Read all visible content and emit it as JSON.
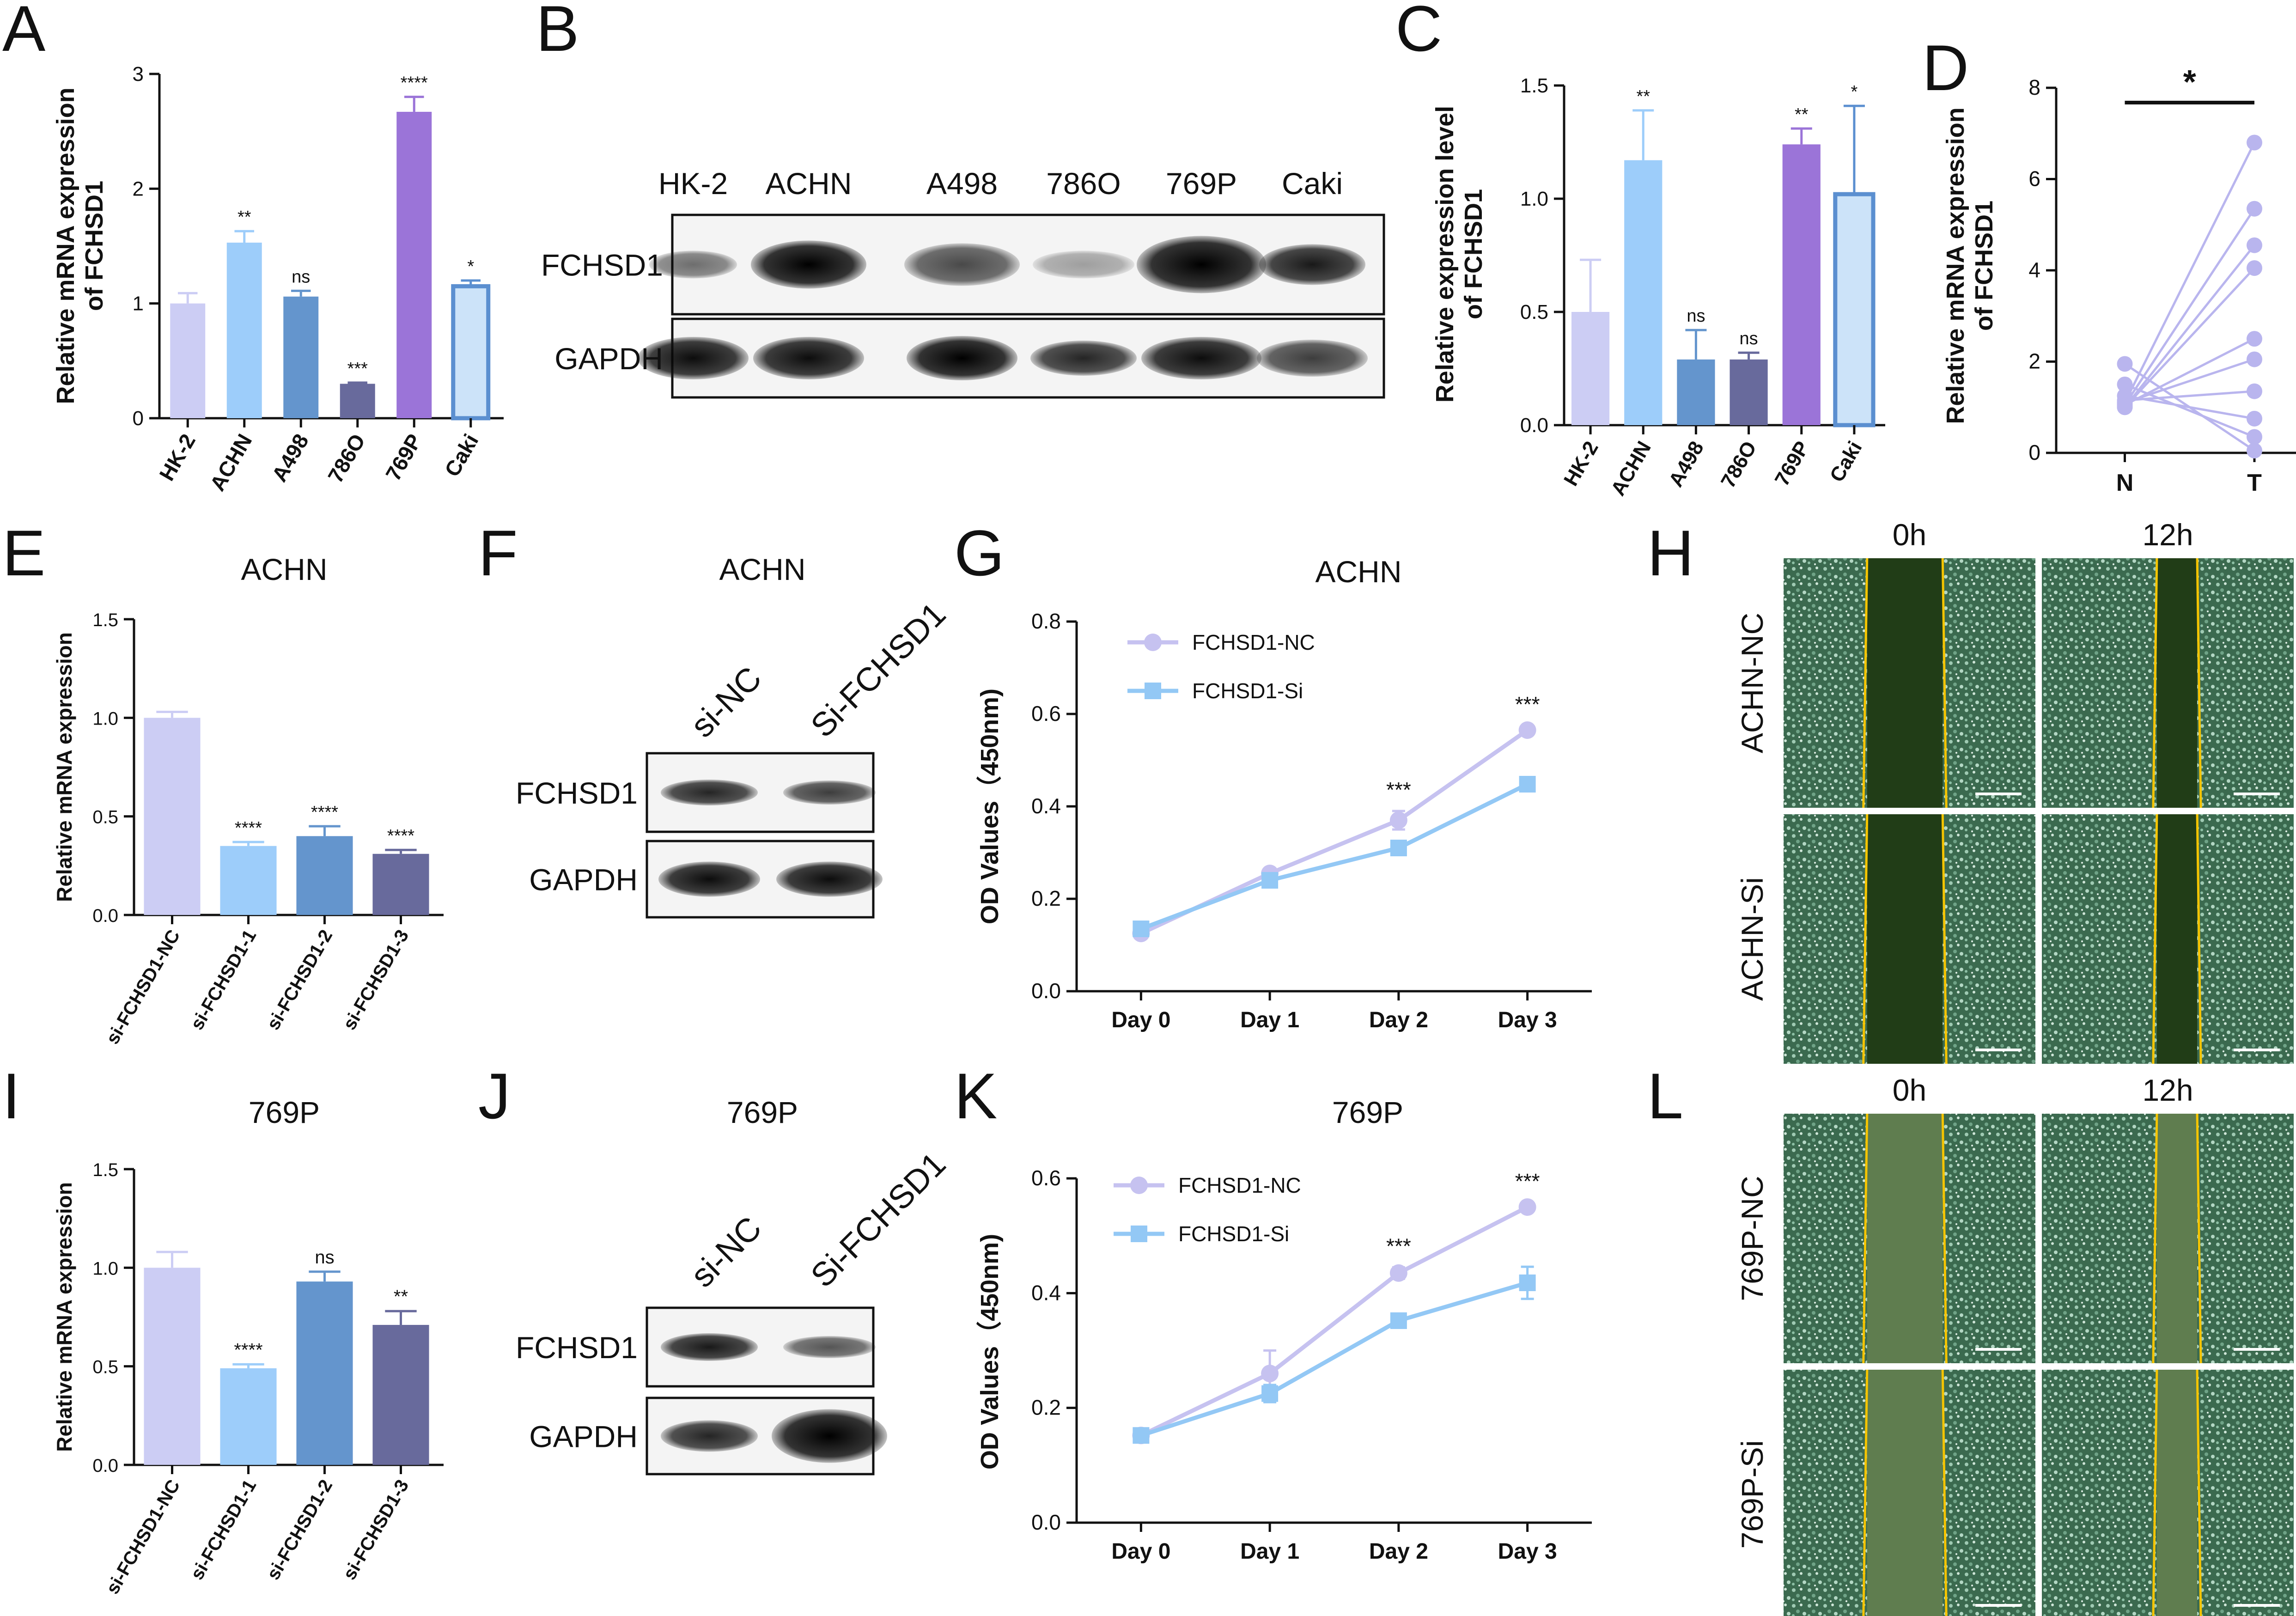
{
  "panel_letters": [
    "A",
    "B",
    "C",
    "D",
    "E",
    "F",
    "G",
    "H",
    "I",
    "J",
    "K",
    "L"
  ],
  "colors": {
    "HK-2": "#cccdf4",
    "ACHN": "#9dcdfa",
    "A498": "#6495cd",
    "786O": "#686a9c",
    "769P": "#9b74d8",
    "Caki": "#cce3f9",
    "Caki_edge": "#5b8fd0",
    "si-FCHSD1-NC": "#cccdf4",
    "si-FCHSD1-1": "#9dcdfa",
    "si-FCHSD1-2": "#6495cd",
    "si-FCHSD1-3": "#686a9c",
    "line_NC": "#c6c2f0",
    "line_Si": "#93c8f5",
    "paired": "#b9b5ee"
  },
  "blots": {
    "B": {
      "lanes": [
        "HK-2",
        "ACHN",
        "A498",
        "786O",
        "769P",
        "Caki"
      ],
      "rows": [
        "FCHSD1",
        "GAPDH"
      ]
    },
    "F": {
      "title": "ACHN",
      "lanes": [
        "si-NC",
        "Si-FCHSD1"
      ],
      "rows": [
        "FCHSD1",
        "GAPDH"
      ]
    },
    "J": {
      "title": "769P",
      "lanes": [
        "si-NC",
        "Si-FCHSD1"
      ],
      "rows": [
        "FCHSD1",
        "GAPDH"
      ]
    }
  },
  "scratch": {
    "H": {
      "times": [
        "0h",
        "12h"
      ],
      "rows": [
        "ACHN-NC",
        "ACHN-Si"
      ]
    },
    "L": {
      "times": [
        "0h",
        "12h"
      ],
      "rows": [
        "769P-NC",
        "769P-Si"
      ]
    }
  },
  "chart_data": [
    {
      "id": "A",
      "type": "bar",
      "title": "",
      "ylabel": "Relative mRNA expression\nof FCHSD1",
      "categories": [
        "HK-2",
        "ACHN",
        "A498",
        "786O",
        "769P",
        "Caki"
      ],
      "values": [
        1.0,
        1.53,
        1.06,
        0.3,
        2.67,
        1.15
      ],
      "errors": [
        0.09,
        0.1,
        0.05,
        0.01,
        0.13,
        0.05
      ],
      "sig": [
        "",
        "**",
        "ns",
        "***",
        "****",
        "*"
      ],
      "ylim": [
        0,
        3
      ],
      "yticks": [
        0,
        1,
        2,
        3
      ]
    },
    {
      "id": "C",
      "type": "bar",
      "title": "",
      "ylabel": "Relative expression level\nof FCHSD1",
      "categories": [
        "HK-2",
        "ACHN",
        "A498",
        "786O",
        "769P",
        "Caki"
      ],
      "values": [
        0.5,
        1.17,
        0.29,
        0.29,
        1.24,
        1.02
      ],
      "errors": [
        0.23,
        0.22,
        0.13,
        0.03,
        0.07,
        0.39
      ],
      "sig": [
        "",
        "**",
        "ns",
        "ns",
        "**",
        "*"
      ],
      "ylim": [
        0,
        1.5
      ],
      "yticks": [
        0.0,
        0.5,
        1.0,
        1.5
      ]
    },
    {
      "id": "D",
      "type": "scatter",
      "title": "",
      "ylabel": "Relative mRNA expression\nof FCHSD1",
      "categories": [
        "N",
        "T"
      ],
      "pairs": [
        [
          1.95,
          0.05
        ],
        [
          1.5,
          0.35
        ],
        [
          1.25,
          0.75
        ],
        [
          1.15,
          1.35
        ],
        [
          1.1,
          2.05
        ],
        [
          1.05,
          2.5
        ],
        [
          1.0,
          4.05
        ],
        [
          1.0,
          4.55
        ],
        [
          1.05,
          5.35
        ],
        [
          1.1,
          6.8
        ]
      ],
      "sig": "*",
      "ylim": [
        0,
        8
      ],
      "yticks": [
        0,
        2,
        4,
        6,
        8
      ]
    },
    {
      "id": "E",
      "type": "bar",
      "title": "ACHN",
      "ylabel": "Relative mRNA expression",
      "categories": [
        "si-FCHSD1-NC",
        "si-FCHSD1-1",
        "si-FCHSD1-2",
        "si-FCHSD1-3"
      ],
      "values": [
        1.0,
        0.35,
        0.4,
        0.31
      ],
      "errors": [
        0.03,
        0.02,
        0.05,
        0.02
      ],
      "sig": [
        "",
        "****",
        "****",
        "****"
      ],
      "ylim": [
        0,
        1.5
      ],
      "yticks": [
        0.0,
        0.5,
        1.0,
        1.5
      ]
    },
    {
      "id": "G",
      "type": "line",
      "title": "ACHN",
      "ylabel": "OD Values（450nm)",
      "categories": [
        "Day 0",
        "Day 1",
        "Day 2",
        "Day 3"
      ],
      "series": [
        {
          "name": "FCHSD1-NC",
          "values": [
            0.125,
            0.255,
            0.37,
            0.565
          ],
          "errors": [
            0.01,
            0.01,
            0.02,
            0.01
          ]
        },
        {
          "name": "FCHSD1-Si",
          "values": [
            0.135,
            0.24,
            0.31,
            0.448
          ],
          "errors": [
            0.01,
            0.01,
            0.01,
            0.01
          ]
        }
      ],
      "sig": [
        "",
        "",
        "***",
        "***"
      ],
      "ylim": [
        0,
        0.8
      ],
      "yticks": [
        0.0,
        0.2,
        0.4,
        0.6,
        0.8
      ]
    },
    {
      "id": "I",
      "type": "bar",
      "title": "769P",
      "ylabel": "Relative mRNA expression",
      "categories": [
        "si-FCHSD1-NC",
        "si-FCHSD1-1",
        "si-FCHSD1-2",
        "si-FCHSD1-3"
      ],
      "values": [
        1.0,
        0.49,
        0.93,
        0.71
      ],
      "errors": [
        0.08,
        0.02,
        0.05,
        0.07
      ],
      "sig": [
        "",
        "****",
        "ns",
        "**"
      ],
      "ylim": [
        0,
        1.5
      ],
      "yticks": [
        0.0,
        0.5,
        1.0,
        1.5
      ]
    },
    {
      "id": "K",
      "type": "line",
      "title": "769P",
      "ylabel": "OD Values（450nm)",
      "categories": [
        "Day 0",
        "Day 1",
        "Day 2",
        "Day 3"
      ],
      "series": [
        {
          "name": "FCHSD1-NC",
          "values": [
            0.152,
            0.26,
            0.435,
            0.55
          ],
          "errors": [
            0.005,
            0.04,
            0.01,
            0.008
          ]
        },
        {
          "name": "FCHSD1-Si",
          "values": [
            0.152,
            0.225,
            0.352,
            0.418
          ],
          "errors": [
            0.005,
            0.015,
            0.008,
            0.028
          ]
        }
      ],
      "sig": [
        "",
        "",
        "***",
        "***"
      ],
      "ylim": [
        0,
        0.6
      ],
      "yticks": [
        0.0,
        0.2,
        0.4,
        0.6
      ]
    }
  ]
}
